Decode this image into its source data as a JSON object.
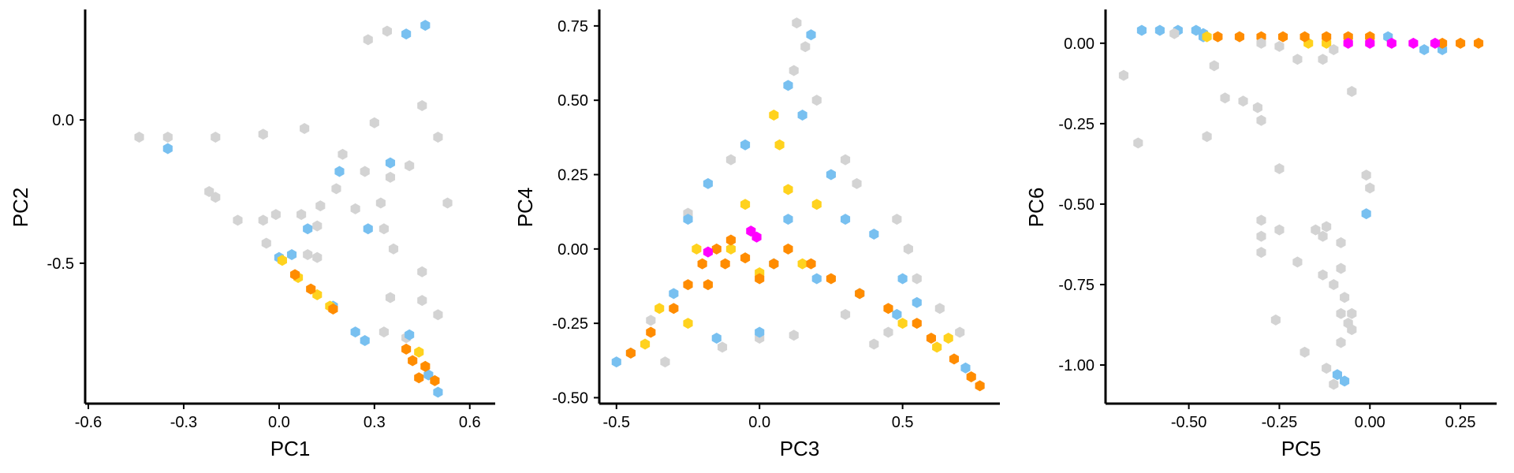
{
  "colors": {
    "grey": "#d3d3d3",
    "blue": "#78c0f0",
    "yellow": "#ffd21e",
    "orange": "#ff8c00",
    "magenta": "#ff00ff"
  },
  "chart_data": [
    {
      "type": "scatter",
      "subtype": "hexbin",
      "xlabel": "PC1",
      "ylabel": "PC2",
      "xlim": [
        -0.61,
        0.68
      ],
      "ylim": [
        -0.99,
        0.38
      ],
      "xticks": [
        -0.6,
        -0.3,
        0.0,
        0.3,
        0.6
      ],
      "xtick_labels": [
        "-0.6",
        "-0.3",
        "0.0",
        "0.3",
        "0.6"
      ],
      "yticks": [
        -0.5,
        0.0
      ],
      "ytick_labels": [
        "-0.5",
        "0.0"
      ],
      "grid": false,
      "regions": [
        {
          "color": "grey",
          "points": [
            [
              -0.44,
              -0.06
            ],
            [
              -0.35,
              -0.06
            ],
            [
              -0.2,
              -0.06
            ],
            [
              -0.05,
              -0.05
            ],
            [
              0.08,
              -0.03
            ],
            [
              0.3,
              -0.01
            ],
            [
              0.45,
              0.05
            ],
            [
              0.28,
              0.28
            ],
            [
              0.34,
              0.31
            ],
            [
              0.5,
              -0.06
            ],
            [
              0.2,
              -0.12
            ],
            [
              0.27,
              -0.18
            ],
            [
              0.35,
              -0.2
            ],
            [
              0.41,
              -0.16
            ]
          ]
        },
        {
          "color": "blue",
          "points": [
            [
              -0.35,
              -0.1
            ],
            [
              0.19,
              -0.18
            ],
            [
              0.35,
              -0.15
            ],
            [
              0.4,
              0.3
            ],
            [
              0.46,
              0.33
            ]
          ]
        },
        {
          "color": "grey",
          "points": [
            [
              -0.22,
              -0.25
            ],
            [
              -0.2,
              -0.27
            ],
            [
              -0.13,
              -0.35
            ],
            [
              -0.05,
              -0.35
            ],
            [
              -0.01,
              -0.33
            ],
            [
              0.07,
              -0.33
            ],
            [
              0.13,
              -0.3
            ],
            [
              0.12,
              -0.37
            ],
            [
              0.18,
              -0.24
            ],
            [
              0.24,
              -0.31
            ],
            [
              0.32,
              -0.29
            ],
            [
              0.33,
              -0.38
            ],
            [
              0.53,
              -0.29
            ],
            [
              0.36,
              -0.45
            ],
            [
              0.45,
              -0.53
            ],
            [
              0.35,
              -0.62
            ],
            [
              0.45,
              -0.63
            ],
            [
              0.5,
              -0.68
            ],
            [
              0.33,
              -0.74
            ],
            [
              0.4,
              -0.76
            ]
          ]
        },
        {
          "color": "grey",
          "points": [
            [
              -0.04,
              -0.43
            ],
            [
              0.09,
              -0.47
            ],
            [
              0.12,
              -0.48
            ]
          ]
        },
        {
          "color": "blue",
          "points": [
            [
              0.09,
              -0.38
            ],
            [
              0.04,
              -0.47
            ],
            [
              0.28,
              -0.38
            ]
          ]
        },
        {
          "color": "blue",
          "points": [
            [
              0.0,
              -0.48
            ],
            [
              0.17,
              -0.65
            ],
            [
              0.24,
              -0.74
            ],
            [
              0.27,
              -0.77
            ],
            [
              0.41,
              -0.75
            ],
            [
              0.47,
              -0.89
            ]
          ]
        },
        {
          "color": "yellow",
          "points": [
            [
              0.01,
              -0.49
            ],
            [
              0.06,
              -0.55
            ],
            [
              0.12,
              -0.61
            ],
            [
              0.16,
              -0.65
            ],
            [
              0.44,
              -0.81
            ]
          ]
        },
        {
          "color": "orange",
          "points": [
            [
              0.05,
              -0.54
            ],
            [
              0.1,
              -0.59
            ],
            [
              0.17,
              -0.66
            ],
            [
              0.4,
              -0.8
            ],
            [
              0.42,
              -0.84
            ],
            [
              0.46,
              -0.86
            ],
            [
              0.44,
              -0.9
            ],
            [
              0.49,
              -0.91
            ]
          ]
        },
        {
          "color": "blue",
          "points": [
            [
              0.5,
              -0.95
            ]
          ]
        }
      ]
    },
    {
      "type": "scatter",
      "subtype": "hexbin",
      "xlabel": "PC3",
      "ylabel": "PC4",
      "xlim": [
        -0.56,
        0.84
      ],
      "ylim": [
        -0.52,
        0.8
      ],
      "xticks": [
        -0.5,
        0.0,
        0.5
      ],
      "xtick_labels": [
        "-0.5",
        "0.0",
        "0.5"
      ],
      "yticks": [
        -0.5,
        -0.25,
        0.0,
        0.25,
        0.5,
        0.75
      ],
      "ytick_labels": [
        "-0.50",
        "-0.25",
        "0.00",
        "0.25",
        "0.50",
        "0.75"
      ],
      "grid": false,
      "regions": [
        {
          "color": "grey",
          "points": [
            [
              0.13,
              0.76
            ],
            [
              0.16,
              0.68
            ],
            [
              0.12,
              0.6
            ],
            [
              0.2,
              0.5
            ],
            [
              -0.1,
              0.3
            ],
            [
              -0.25,
              0.12
            ],
            [
              0.3,
              0.3
            ],
            [
              0.34,
              0.22
            ],
            [
              0.48,
              0.1
            ],
            [
              0.52,
              0.0
            ],
            [
              0.55,
              -0.1
            ],
            [
              0.63,
              -0.2
            ],
            [
              0.7,
              -0.28
            ],
            [
              -0.38,
              -0.24
            ],
            [
              -0.33,
              -0.38
            ],
            [
              0.0,
              -0.3
            ],
            [
              0.3,
              -0.22
            ],
            [
              0.45,
              -0.28
            ],
            [
              0.4,
              -0.32
            ],
            [
              0.12,
              -0.29
            ],
            [
              -0.13,
              -0.33
            ]
          ]
        },
        {
          "color": "blue",
          "points": [
            [
              0.18,
              0.72
            ],
            [
              0.1,
              0.55
            ],
            [
              0.15,
              0.45
            ],
            [
              -0.05,
              0.35
            ],
            [
              -0.18,
              0.22
            ],
            [
              0.25,
              0.25
            ],
            [
              0.3,
              0.1
            ],
            [
              0.4,
              0.05
            ],
            [
              0.5,
              -0.1
            ],
            [
              0.1,
              0.1
            ],
            [
              0.05,
              -0.05
            ],
            [
              0.2,
              -0.1
            ],
            [
              -0.25,
              0.1
            ],
            [
              -0.3,
              -0.15
            ],
            [
              -0.45,
              -0.35
            ],
            [
              -0.5,
              -0.38
            ],
            [
              0.35,
              -0.15
            ],
            [
              0.55,
              -0.18
            ],
            [
              0.72,
              -0.4
            ],
            [
              0.48,
              -0.22
            ],
            [
              0.0,
              -0.28
            ],
            [
              -0.15,
              -0.3
            ]
          ]
        },
        {
          "color": "yellow",
          "points": [
            [
              0.05,
              0.45
            ],
            [
              0.07,
              0.35
            ],
            [
              0.1,
              0.2
            ],
            [
              -0.05,
              0.15
            ],
            [
              -0.22,
              0.0
            ],
            [
              -0.1,
              0.0
            ],
            [
              0.0,
              -0.08
            ],
            [
              0.15,
              -0.05
            ],
            [
              0.2,
              0.15
            ],
            [
              -0.35,
              -0.2
            ],
            [
              -0.4,
              -0.32
            ],
            [
              -0.25,
              -0.25
            ],
            [
              0.5,
              -0.25
            ],
            [
              0.62,
              -0.33
            ],
            [
              0.66,
              -0.3
            ]
          ]
        },
        {
          "color": "orange",
          "points": [
            [
              -0.45,
              -0.35
            ],
            [
              -0.38,
              -0.28
            ],
            [
              -0.3,
              -0.2
            ],
            [
              -0.25,
              -0.12
            ],
            [
              -0.2,
              -0.05
            ],
            [
              -0.15,
              0.0
            ],
            [
              -0.1,
              0.03
            ],
            [
              -0.05,
              -0.03
            ],
            [
              0.05,
              -0.05
            ],
            [
              0.1,
              0.0
            ],
            [
              0.18,
              -0.05
            ],
            [
              0.25,
              -0.1
            ],
            [
              0.35,
              -0.15
            ],
            [
              0.45,
              -0.2
            ],
            [
              0.55,
              -0.25
            ],
            [
              0.6,
              -0.3
            ],
            [
              0.68,
              -0.37
            ],
            [
              0.74,
              -0.43
            ],
            [
              0.77,
              -0.46
            ],
            [
              -0.12,
              -0.05
            ],
            [
              -0.18,
              -0.12
            ],
            [
              0.0,
              -0.1
            ]
          ]
        },
        {
          "color": "magenta",
          "points": [
            [
              -0.18,
              -0.01
            ],
            [
              -0.03,
              0.06
            ],
            [
              -0.01,
              0.04
            ]
          ]
        }
      ]
    },
    {
      "type": "scatter",
      "subtype": "hexbin",
      "xlabel": "PC5",
      "ylabel": "PC6",
      "xlim": [
        -0.73,
        0.35
      ],
      "ylim": [
        -1.12,
        0.1
      ],
      "xticks": [
        -0.5,
        -0.25,
        0.0,
        0.25
      ],
      "xtick_labels": [
        "-0.50",
        "-0.25",
        "0.00",
        "0.25"
      ],
      "yticks": [
        -1.0,
        -0.75,
        -0.5,
        -0.25,
        0.0
      ],
      "ytick_labels": [
        "-1.00",
        "-0.75",
        "-0.50",
        "-0.25",
        "0.00"
      ],
      "grid": false,
      "regions": [
        {
          "color": "blue",
          "points": [
            [
              -0.63,
              0.04
            ],
            [
              -0.58,
              0.04
            ],
            [
              -0.53,
              0.04
            ],
            [
              -0.48,
              0.04
            ],
            [
              -0.46,
              0.02
            ],
            [
              -0.46,
              0.03
            ],
            [
              0.05,
              0.02
            ],
            [
              0.15,
              -0.02
            ],
            [
              0.2,
              -0.02
            ]
          ]
        },
        {
          "color": "yellow",
          "points": [
            [
              -0.45,
              0.02
            ],
            [
              -0.17,
              0.0
            ],
            [
              -0.12,
              0.0
            ],
            [
              0.0,
              0.02
            ]
          ]
        },
        {
          "color": "orange",
          "points": [
            [
              -0.42,
              0.02
            ],
            [
              -0.36,
              0.02
            ],
            [
              -0.3,
              0.02
            ],
            [
              -0.24,
              0.02
            ],
            [
              -0.18,
              0.02
            ],
            [
              -0.12,
              0.02
            ],
            [
              -0.06,
              0.02
            ],
            [
              0.0,
              0.02
            ],
            [
              0.2,
              0.0
            ],
            [
              0.25,
              0.0
            ],
            [
              0.3,
              0.0
            ]
          ]
        },
        {
          "color": "magenta",
          "points": [
            [
              -0.06,
              0.0
            ],
            [
              0.0,
              0.0
            ],
            [
              0.06,
              0.0
            ],
            [
              0.12,
              0.0
            ],
            [
              0.18,
              0.0
            ]
          ]
        },
        {
          "color": "grey",
          "points": [
            [
              -0.54,
              0.03
            ],
            [
              -0.3,
              0.0
            ],
            [
              -0.25,
              -0.01
            ],
            [
              -0.2,
              -0.05
            ],
            [
              -0.13,
              -0.05
            ],
            [
              -0.1,
              -0.02
            ],
            [
              -0.43,
              -0.07
            ],
            [
              -0.68,
              -0.1
            ],
            [
              -0.4,
              -0.17
            ],
            [
              -0.35,
              -0.18
            ],
            [
              -0.3,
              -0.24
            ],
            [
              -0.31,
              -0.2
            ],
            [
              -0.05,
              -0.15
            ],
            [
              -0.64,
              -0.31
            ],
            [
              -0.45,
              -0.29
            ],
            [
              -0.01,
              -0.41
            ],
            [
              0.0,
              -0.45
            ],
            [
              -0.25,
              -0.39
            ],
            [
              -0.3,
              -0.55
            ],
            [
              -0.3,
              -0.6
            ],
            [
              -0.25,
              -0.58
            ],
            [
              -0.15,
              -0.58
            ],
            [
              -0.12,
              -0.57
            ],
            [
              -0.08,
              -0.62
            ],
            [
              -0.08,
              -0.7
            ],
            [
              -0.07,
              -0.79
            ],
            [
              -0.08,
              -0.84
            ],
            [
              -0.05,
              -0.84
            ],
            [
              -0.06,
              -0.87
            ],
            [
              -0.05,
              -0.89
            ],
            [
              -0.08,
              -0.93
            ],
            [
              -0.26,
              -0.86
            ],
            [
              -0.18,
              -0.96
            ],
            [
              -0.12,
              -1.01
            ],
            [
              -0.1,
              -1.06
            ],
            [
              -0.3,
              -0.65
            ],
            [
              -0.2,
              -0.68
            ],
            [
              -0.13,
              -0.6
            ],
            [
              -0.13,
              -0.72
            ],
            [
              -0.1,
              -0.75
            ]
          ]
        },
        {
          "color": "blue",
          "points": [
            [
              -0.01,
              -0.53
            ],
            [
              -0.07,
              -1.05
            ],
            [
              -0.09,
              -1.03
            ]
          ]
        }
      ]
    }
  ]
}
